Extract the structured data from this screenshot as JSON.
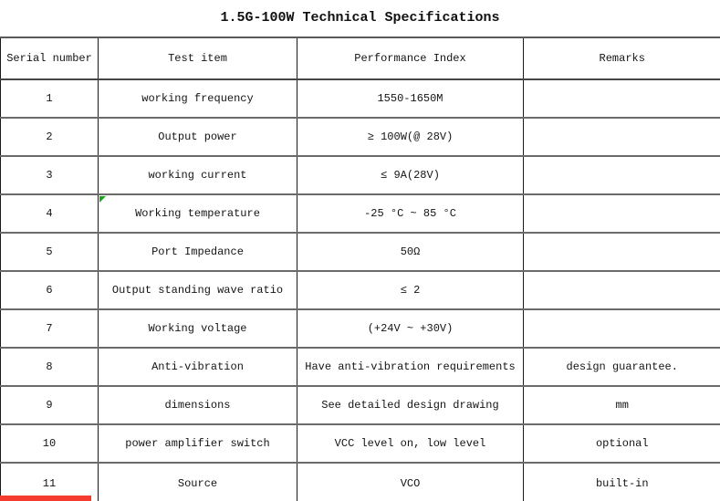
{
  "title": "1.5G-100W Technical Specifications",
  "table": {
    "headers": [
      "Serial number",
      "Test item",
      "Performance Index",
      "Remarks"
    ],
    "rows": [
      {
        "serial": "1",
        "item": "working frequency",
        "index": "1550-1650M",
        "remarks": ""
      },
      {
        "serial": "2",
        "item": "Output power",
        "index": "≥ 100W(@ 28V)",
        "remarks": ""
      },
      {
        "serial": "3",
        "item": "working current",
        "index": "≤ 9A(28V)",
        "remarks": ""
      },
      {
        "serial": "4",
        "item": "Working temperature",
        "index": "-25 °C ~ 85 °C",
        "remarks": "",
        "has_comment_marker": true
      },
      {
        "serial": "5",
        "item": "Port Impedance",
        "index": "50Ω",
        "remarks": ""
      },
      {
        "serial": "6",
        "item": "Output standing wave ratio",
        "index": "≤ 2",
        "remarks": ""
      },
      {
        "serial": "7",
        "item": "Working voltage",
        "index": "(+24V ~ +30V)",
        "remarks": ""
      },
      {
        "serial": "8",
        "item": "Anti-vibration",
        "index": "Have anti-vibration requirements",
        "remarks": "design guarantee."
      },
      {
        "serial": "9",
        "item": "dimensions",
        "index": "See detailed design drawing",
        "remarks": "mm"
      },
      {
        "serial": "10",
        "item": "power amplifier switch",
        "index": "VCC level on, low level",
        "remarks": "optional"
      },
      {
        "serial": "11",
        "item": "Source",
        "index": "VCO",
        "remarks": "built-in"
      }
    ]
  },
  "colors": {
    "comment_marker_green": "#19a319",
    "bottom_red_bar": "#f43b2d",
    "border_dark": "#1a1a1a",
    "border_gray": "#6a6a6a"
  }
}
